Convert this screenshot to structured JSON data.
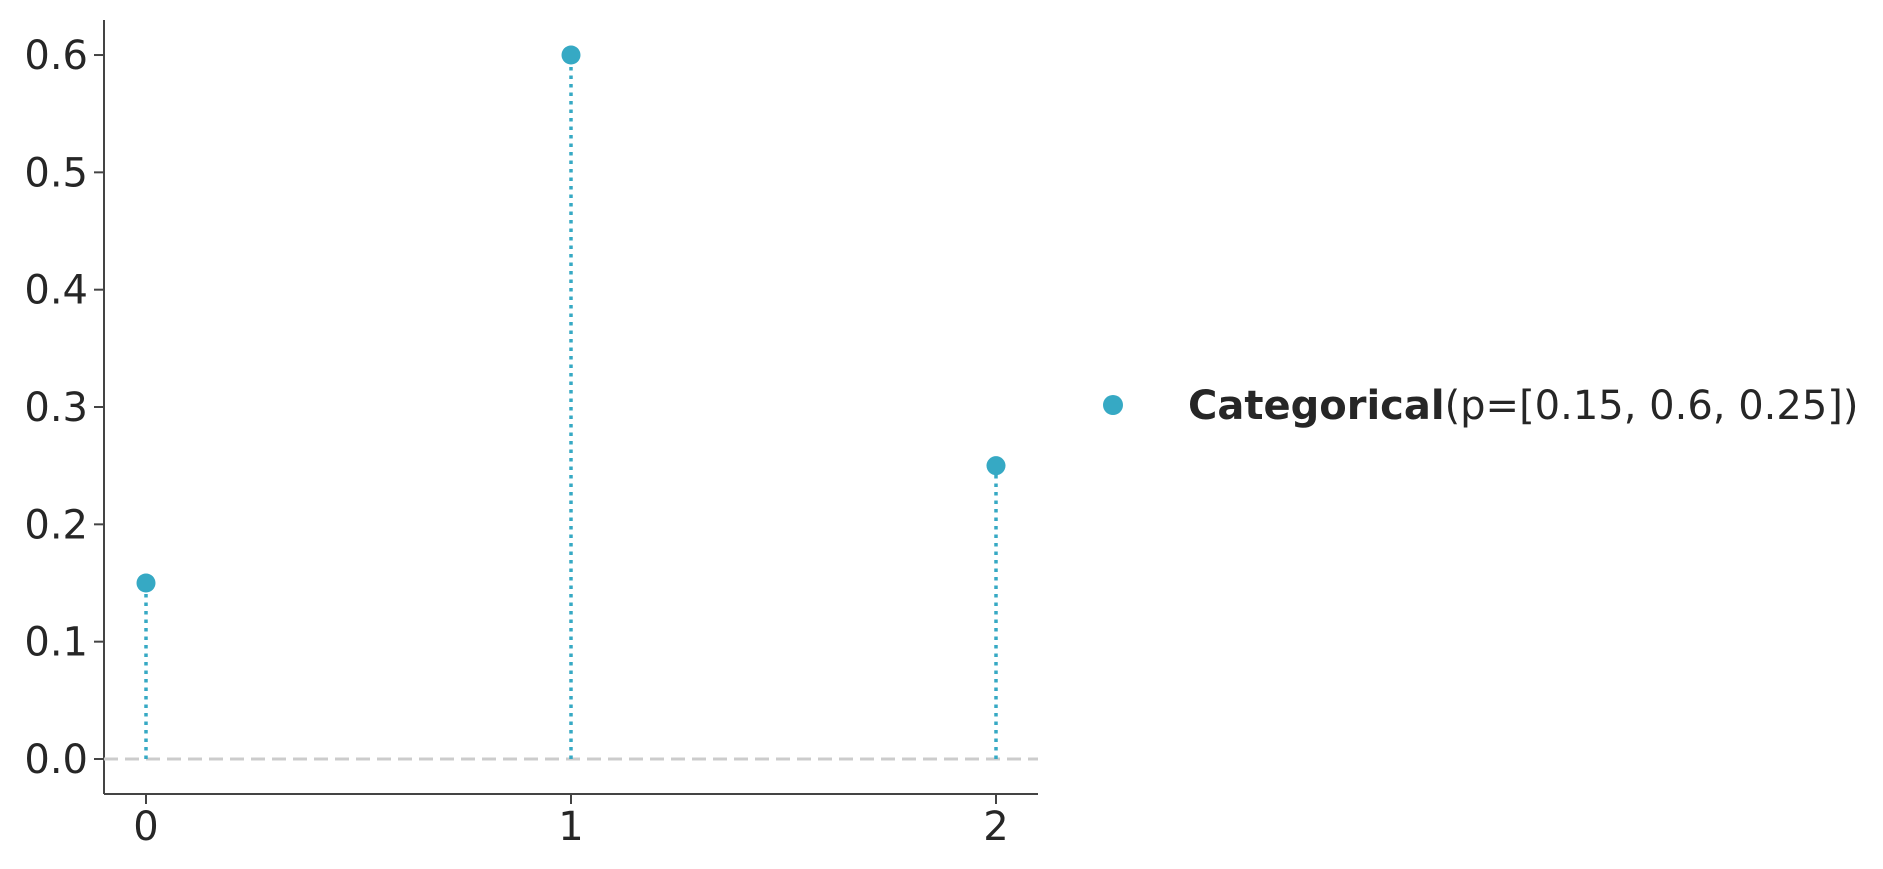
{
  "chart_data": {
    "type": "scatter",
    "x": [
      0,
      1,
      2
    ],
    "y": [
      0.15,
      0.6,
      0.25
    ],
    "xticks": [
      "0",
      "1",
      "2"
    ],
    "yticks": [
      "0.0",
      "0.1",
      "0.2",
      "0.3",
      "0.4",
      "0.5",
      "0.6"
    ],
    "xlim": [
      -0.1,
      2.1
    ],
    "ylim": [
      -0.03,
      0.63
    ],
    "grid": false,
    "legend_position": "right",
    "series": [
      {
        "name": "Categorical(p=[0.15, 0.6, 0.25])",
        "name_bold": "Categorical",
        "name_rest": "(p=[0.15, 0.6, 0.25])",
        "color": "#36a9c4",
        "style": "dotted stems with markers"
      }
    ],
    "baseline_color": "#cccccc",
    "axis_color": "#444444"
  }
}
